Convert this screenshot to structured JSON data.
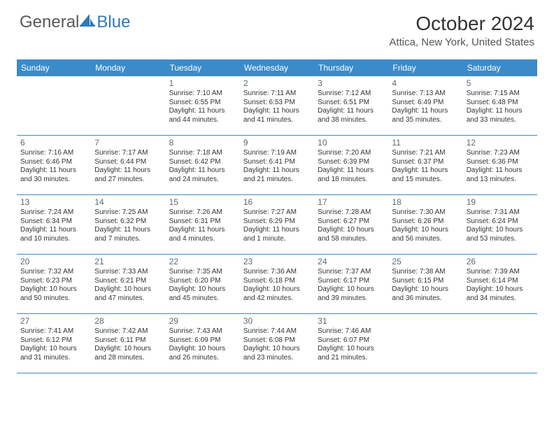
{
  "brand": {
    "part1": "General",
    "part2": "Blue",
    "color_gray": "#585858",
    "color_blue": "#2f79b9"
  },
  "title": {
    "month": "October 2024",
    "location": "Attica, New York, United States",
    "month_fontsize": 28,
    "location_fontsize": 15
  },
  "calendar": {
    "header_bg": "#3b8bca",
    "header_text_color": "#ffffff",
    "row_divider_color": "#3b8bca",
    "cell_text_color": "#333333",
    "daynum_color": "#5a6a78",
    "columns": 7,
    "rows": 5,
    "day_names": [
      "Sunday",
      "Monday",
      "Tuesday",
      "Wednesday",
      "Thursday",
      "Friday",
      "Saturday"
    ],
    "weeks": [
      [
        null,
        null,
        {
          "n": "1",
          "sr": "Sunrise: 7:10 AM",
          "ss": "Sunset: 6:55 PM",
          "dl": "Daylight: 11 hours and 44 minutes."
        },
        {
          "n": "2",
          "sr": "Sunrise: 7:11 AM",
          "ss": "Sunset: 6:53 PM",
          "dl": "Daylight: 11 hours and 41 minutes."
        },
        {
          "n": "3",
          "sr": "Sunrise: 7:12 AM",
          "ss": "Sunset: 6:51 PM",
          "dl": "Daylight: 11 hours and 38 minutes."
        },
        {
          "n": "4",
          "sr": "Sunrise: 7:13 AM",
          "ss": "Sunset: 6:49 PM",
          "dl": "Daylight: 11 hours and 35 minutes."
        },
        {
          "n": "5",
          "sr": "Sunrise: 7:15 AM",
          "ss": "Sunset: 6:48 PM",
          "dl": "Daylight: 11 hours and 33 minutes."
        }
      ],
      [
        {
          "n": "6",
          "sr": "Sunrise: 7:16 AM",
          "ss": "Sunset: 6:46 PM",
          "dl": "Daylight: 11 hours and 30 minutes."
        },
        {
          "n": "7",
          "sr": "Sunrise: 7:17 AM",
          "ss": "Sunset: 6:44 PM",
          "dl": "Daylight: 11 hours and 27 minutes."
        },
        {
          "n": "8",
          "sr": "Sunrise: 7:18 AM",
          "ss": "Sunset: 6:42 PM",
          "dl": "Daylight: 11 hours and 24 minutes."
        },
        {
          "n": "9",
          "sr": "Sunrise: 7:19 AM",
          "ss": "Sunset: 6:41 PM",
          "dl": "Daylight: 11 hours and 21 minutes."
        },
        {
          "n": "10",
          "sr": "Sunrise: 7:20 AM",
          "ss": "Sunset: 6:39 PM",
          "dl": "Daylight: 11 hours and 18 minutes."
        },
        {
          "n": "11",
          "sr": "Sunrise: 7:21 AM",
          "ss": "Sunset: 6:37 PM",
          "dl": "Daylight: 11 hours and 15 minutes."
        },
        {
          "n": "12",
          "sr": "Sunrise: 7:23 AM",
          "ss": "Sunset: 6:36 PM",
          "dl": "Daylight: 11 hours and 13 minutes."
        }
      ],
      [
        {
          "n": "13",
          "sr": "Sunrise: 7:24 AM",
          "ss": "Sunset: 6:34 PM",
          "dl": "Daylight: 11 hours and 10 minutes."
        },
        {
          "n": "14",
          "sr": "Sunrise: 7:25 AM",
          "ss": "Sunset: 6:32 PM",
          "dl": "Daylight: 11 hours and 7 minutes."
        },
        {
          "n": "15",
          "sr": "Sunrise: 7:26 AM",
          "ss": "Sunset: 6:31 PM",
          "dl": "Daylight: 11 hours and 4 minutes."
        },
        {
          "n": "16",
          "sr": "Sunrise: 7:27 AM",
          "ss": "Sunset: 6:29 PM",
          "dl": "Daylight: 11 hours and 1 minute."
        },
        {
          "n": "17",
          "sr": "Sunrise: 7:28 AM",
          "ss": "Sunset: 6:27 PM",
          "dl": "Daylight: 10 hours and 58 minutes."
        },
        {
          "n": "18",
          "sr": "Sunrise: 7:30 AM",
          "ss": "Sunset: 6:26 PM",
          "dl": "Daylight: 10 hours and 56 minutes."
        },
        {
          "n": "19",
          "sr": "Sunrise: 7:31 AM",
          "ss": "Sunset: 6:24 PM",
          "dl": "Daylight: 10 hours and 53 minutes."
        }
      ],
      [
        {
          "n": "20",
          "sr": "Sunrise: 7:32 AM",
          "ss": "Sunset: 6:23 PM",
          "dl": "Daylight: 10 hours and 50 minutes."
        },
        {
          "n": "21",
          "sr": "Sunrise: 7:33 AM",
          "ss": "Sunset: 6:21 PM",
          "dl": "Daylight: 10 hours and 47 minutes."
        },
        {
          "n": "22",
          "sr": "Sunrise: 7:35 AM",
          "ss": "Sunset: 6:20 PM",
          "dl": "Daylight: 10 hours and 45 minutes."
        },
        {
          "n": "23",
          "sr": "Sunrise: 7:36 AM",
          "ss": "Sunset: 6:18 PM",
          "dl": "Daylight: 10 hours and 42 minutes."
        },
        {
          "n": "24",
          "sr": "Sunrise: 7:37 AM",
          "ss": "Sunset: 6:17 PM",
          "dl": "Daylight: 10 hours and 39 minutes."
        },
        {
          "n": "25",
          "sr": "Sunrise: 7:38 AM",
          "ss": "Sunset: 6:15 PM",
          "dl": "Daylight: 10 hours and 36 minutes."
        },
        {
          "n": "26",
          "sr": "Sunrise: 7:39 AM",
          "ss": "Sunset: 6:14 PM",
          "dl": "Daylight: 10 hours and 34 minutes."
        }
      ],
      [
        {
          "n": "27",
          "sr": "Sunrise: 7:41 AM",
          "ss": "Sunset: 6:12 PM",
          "dl": "Daylight: 10 hours and 31 minutes."
        },
        {
          "n": "28",
          "sr": "Sunrise: 7:42 AM",
          "ss": "Sunset: 6:11 PM",
          "dl": "Daylight: 10 hours and 28 minutes."
        },
        {
          "n": "29",
          "sr": "Sunrise: 7:43 AM",
          "ss": "Sunset: 6:09 PM",
          "dl": "Daylight: 10 hours and 26 minutes."
        },
        {
          "n": "30",
          "sr": "Sunrise: 7:44 AM",
          "ss": "Sunset: 6:08 PM",
          "dl": "Daylight: 10 hours and 23 minutes."
        },
        {
          "n": "31",
          "sr": "Sunrise: 7:46 AM",
          "ss": "Sunset: 6:07 PM",
          "dl": "Daylight: 10 hours and 21 minutes."
        },
        null,
        null
      ]
    ]
  }
}
